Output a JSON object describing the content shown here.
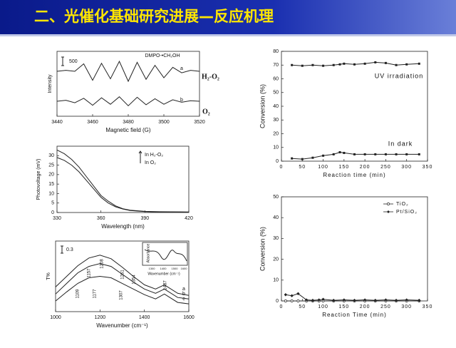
{
  "title": "二、光催化基础研究进展—反应机理",
  "chart_data": [
    {
      "type": "line",
      "xlabel": "Magnetic field (G)",
      "ylabel": "Intensity",
      "x": [
        3440,
        3445,
        3450,
        3455,
        3460,
        3465,
        3470,
        3475,
        3480,
        3485,
        3490,
        3495,
        3500,
        3505,
        3510,
        3515,
        3520
      ],
      "xlim": [
        3440,
        3520
      ],
      "xticks": [
        3440,
        3460,
        3480,
        3500,
        3520
      ],
      "ylim": [
        -3,
        10
      ],
      "series": [
        {
          "name": "a",
          "color": "#333333",
          "values": [
            6,
            6.2,
            6,
            7.5,
            4.2,
            7.6,
            4.5,
            8,
            4,
            7.8,
            4.4,
            7.2,
            4.7,
            6.8,
            5.7,
            6.2,
            6
          ]
        },
        {
          "name": "b",
          "color": "#333333",
          "values": [
            0,
            0.2,
            -0.3,
            0.6,
            -0.8,
            0.7,
            -0.6,
            0.9,
            -0.9,
            0.8,
            -0.7,
            0.5,
            -0.6,
            0.3,
            -0.2,
            0.1,
            0
          ]
        }
      ],
      "annotations": [
        "DMPO-•CH₂OH",
        "500",
        "H₂-O₂",
        "O₂"
      ]
    },
    {
      "type": "line",
      "xlabel": "Wavelength (nm)",
      "ylabel": "Photovoltage (mV)",
      "x": [
        330,
        335,
        340,
        345,
        350,
        355,
        360,
        365,
        370,
        375,
        380,
        390,
        400,
        420
      ],
      "xlim": [
        330,
        420
      ],
      "xticks": [
        330,
        360,
        390,
        420
      ],
      "ylim": [
        0,
        35
      ],
      "yticks": [
        0,
        5,
        10,
        15,
        20,
        25,
        30
      ],
      "legend": "upper right",
      "series": [
        {
          "name": "In H₂-O₂",
          "color": "#333333",
          "values": [
            33,
            31,
            28,
            24,
            19,
            14,
            9,
            6,
            3.5,
            2,
            1.2,
            0.6,
            0.4,
            0.3
          ]
        },
        {
          "name": "In O₂",
          "color": "#333333",
          "values": [
            29,
            27.5,
            25,
            21.5,
            17,
            12.5,
            8,
            5,
            3,
            1.8,
            1,
            0.5,
            0.3,
            0.2
          ]
        }
      ]
    },
    {
      "type": "line",
      "xlabel": "Wavenumber (cm⁻¹)",
      "ylabel": "T%",
      "x": [
        1000,
        1050,
        1100,
        1150,
        1200,
        1250,
        1300,
        1350,
        1400,
        1450,
        1490,
        1550,
        1600
      ],
      "xlim": [
        1000,
        1600
      ],
      "xticks": [
        1000,
        1200,
        1400,
        1600
      ],
      "ylim": [
        0,
        10
      ],
      "series": [
        {
          "name": "a",
          "color": "#333333",
          "values": [
            3.5,
            5,
            6.5,
            7.6,
            8,
            7.5,
            6.3,
            5,
            3.8,
            3.2,
            3.8,
            2.6,
            2.3
          ]
        },
        {
          "name": "b",
          "color": "#333333",
          "values": [
            2.5,
            4,
            5.5,
            6.4,
            6.8,
            6.4,
            5.3,
            4.2,
            3.2,
            2.6,
            3.2,
            2,
            1.8
          ]
        },
        {
          "name": "c",
          "color": "#333333",
          "values": [
            1.5,
            2.8,
            4,
            4.8,
            5,
            4.8,
            4,
            3.2,
            2.4,
            1.8,
            2.5,
            1.3,
            1.1
          ]
        }
      ],
      "annotations": [
        "0.3",
        "1157",
        "1208",
        "1261",
        "1354",
        "1487",
        "1109",
        "1177",
        "1307",
        "Absorbance",
        "Wavenumber (cm⁻¹)",
        "1300",
        "1400",
        "1500",
        "1600"
      ]
    },
    {
      "type": "line",
      "xlabel": "Reaction time (min)",
      "ylabel": "Conversion (%)",
      "x": [
        25,
        50,
        75,
        100,
        125,
        140,
        150,
        175,
        200,
        225,
        250,
        275,
        300,
        330
      ],
      "xlim": [
        0,
        350
      ],
      "xticks": [
        0,
        50,
        100,
        150,
        200,
        250,
        300,
        350
      ],
      "ylim": [
        0,
        80
      ],
      "yticks": [
        0,
        10,
        20,
        30,
        40,
        50,
        60,
        70,
        80
      ],
      "series": [
        {
          "name": "UV irradiation",
          "color": "#222222",
          "marker": "square",
          "values": [
            70,
            69.5,
            70,
            69.5,
            70,
            70.5,
            71,
            70.5,
            71,
            72,
            71.5,
            70,
            70.5,
            71
          ]
        },
        {
          "name": "In dark",
          "color": "#222222",
          "marker": "square",
          "values": [
            2,
            1.5,
            2.5,
            4,
            5,
            6.5,
            6,
            5,
            5,
            5,
            5,
            5,
            5,
            5
          ]
        }
      ]
    },
    {
      "type": "line",
      "xlabel": "Reaction Time (min)",
      "ylabel": "Conversion (%)",
      "x": [
        10,
        25,
        40,
        60,
        75,
        90,
        100,
        125,
        150,
        175,
        200,
        225,
        250,
        275,
        300,
        330
      ],
      "xlim": [
        0,
        350
      ],
      "xticks": [
        0,
        50,
        100,
        150,
        200,
        250,
        300,
        350
      ],
      "ylim": [
        0,
        50
      ],
      "yticks": [
        0,
        10,
        20,
        30,
        40,
        50
      ],
      "legend": "upper right",
      "series": [
        {
          "name": "TiO₂",
          "color": "#222222",
          "marker": "circle",
          "values": [
            0,
            0,
            0,
            0,
            0,
            0,
            0,
            0,
            0,
            0,
            0,
            0,
            0,
            0,
            0,
            0
          ]
        },
        {
          "name": "Pt/SiO₂",
          "color": "#222222",
          "marker": "diamond",
          "values": [
            3,
            2.5,
            3.5,
            0.5,
            0.3,
            0.5,
            0.8,
            0.3,
            0.5,
            0.3,
            0.5,
            0.3,
            0.5,
            0.3,
            0.5,
            0.3
          ]
        }
      ]
    }
  ]
}
